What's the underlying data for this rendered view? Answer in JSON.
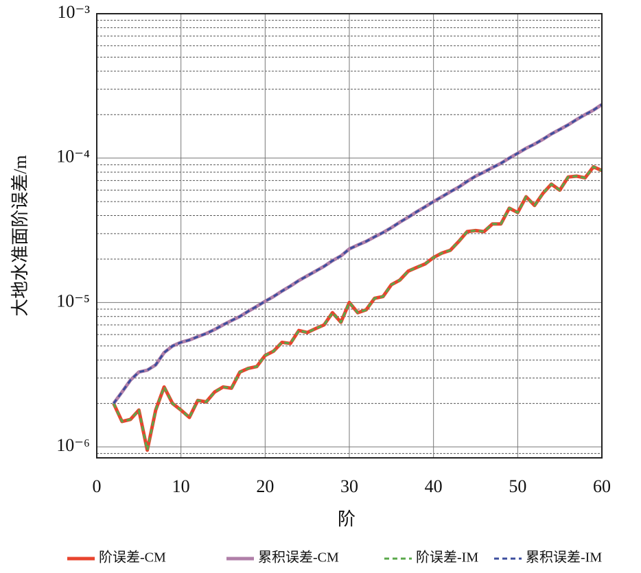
{
  "chart_data": {
    "type": "line",
    "x_label": "阶",
    "y_label": "大地水准面阶误差/m",
    "x": [
      2,
      3,
      4,
      5,
      6,
      7,
      8,
      9,
      10,
      11,
      12,
      13,
      14,
      15,
      16,
      17,
      18,
      19,
      20,
      21,
      22,
      23,
      24,
      25,
      26,
      27,
      28,
      29,
      30,
      31,
      32,
      33,
      34,
      35,
      36,
      37,
      38,
      39,
      40,
      41,
      42,
      43,
      44,
      45,
      46,
      47,
      48,
      49,
      50,
      51,
      52,
      53,
      54,
      55,
      56,
      57,
      58,
      59,
      60
    ],
    "series": [
      {
        "name": "阶误差-CM",
        "color": "#e8442e",
        "dash": false,
        "values": [
          2e-06,
          1.5e-06,
          1.55e-06,
          1.8e-06,
          9.5e-07,
          1.8e-06,
          2.6e-06,
          2e-06,
          1.8e-06,
          1.6e-06,
          2.1e-06,
          2.05e-06,
          2.4e-06,
          2.6e-06,
          2.55e-06,
          3.3e-06,
          3.5e-06,
          3.6e-06,
          4.3e-06,
          4.6e-06,
          5.3e-06,
          5.2e-06,
          6.4e-06,
          6.2e-06,
          6.6e-06,
          7e-06,
          8.5e-06,
          7.3e-06,
          1e-05,
          8.5e-06,
          8.9e-06,
          1.07e-05,
          1.1e-05,
          1.33e-05,
          1.43e-05,
          1.65e-05,
          1.75e-05,
          1.85e-05,
          2.05e-05,
          2.2e-05,
          2.3e-05,
          2.65e-05,
          3.1e-05,
          3.15e-05,
          3.1e-05,
          3.5e-05,
          3.5e-05,
          4.5e-05,
          4.2e-05,
          5.4e-05,
          4.7e-05,
          5.7e-05,
          6.6e-05,
          6e-05,
          7.4e-05,
          7.5e-05,
          7.3e-05,
          8.7e-05,
          8.2e-05
        ]
      },
      {
        "name": "累积误差-CM",
        "color": "#b07fa8",
        "dash": false,
        "values": [
          2e-06,
          2.4e-06,
          2.9e-06,
          3.3e-06,
          3.4e-06,
          3.7e-06,
          4.5e-06,
          5e-06,
          5.3e-06,
          5.5e-06,
          5.8e-06,
          6.1e-06,
          6.5e-06,
          7e-06,
          7.5e-06,
          8e-06,
          8.7e-06,
          9.4e-06,
          1.02e-05,
          1.1e-05,
          1.2e-05,
          1.3e-05,
          1.42e-05,
          1.53e-05,
          1.65e-05,
          1.78e-05,
          1.95e-05,
          2.1e-05,
          2.35e-05,
          2.5e-05,
          2.65e-05,
          2.85e-05,
          3.05e-05,
          3.3e-05,
          3.6e-05,
          3.9e-05,
          4.25e-05,
          4.6e-05,
          5e-05,
          5.4e-05,
          5.85e-05,
          6.3e-05,
          6.9e-05,
          7.5e-05,
          8e-05,
          8.6e-05,
          9.2e-05,
          0.0001,
          0.000108,
          0.000117,
          0.000125,
          0.000135,
          0.000147,
          0.000158,
          0.00017,
          0.000185,
          0.0002,
          0.000215,
          0.000235
        ]
      },
      {
        "name": "阶误差-IM",
        "color": "#5aa84a",
        "dash": true,
        "values": [
          2e-06,
          1.5e-06,
          1.55e-06,
          1.8e-06,
          9.5e-07,
          1.8e-06,
          2.6e-06,
          2e-06,
          1.8e-06,
          1.6e-06,
          2.1e-06,
          2.05e-06,
          2.4e-06,
          2.6e-06,
          2.55e-06,
          3.3e-06,
          3.5e-06,
          3.6e-06,
          4.3e-06,
          4.6e-06,
          5.3e-06,
          5.2e-06,
          6.4e-06,
          6.2e-06,
          6.6e-06,
          7e-06,
          8.5e-06,
          7.3e-06,
          1e-05,
          8.5e-06,
          8.9e-06,
          1.07e-05,
          1.1e-05,
          1.33e-05,
          1.43e-05,
          1.65e-05,
          1.75e-05,
          1.85e-05,
          2.05e-05,
          2.2e-05,
          2.3e-05,
          2.65e-05,
          3.1e-05,
          3.15e-05,
          3.1e-05,
          3.5e-05,
          3.5e-05,
          4.5e-05,
          4.2e-05,
          5.4e-05,
          4.7e-05,
          5.7e-05,
          6.6e-05,
          6e-05,
          7.4e-05,
          7.5e-05,
          7.3e-05,
          8.7e-05,
          8.2e-05
        ]
      },
      {
        "name": "累积误差-IM",
        "color": "#3c4e9e",
        "dash": true,
        "values": [
          2e-06,
          2.4e-06,
          2.9e-06,
          3.3e-06,
          3.4e-06,
          3.7e-06,
          4.5e-06,
          5e-06,
          5.3e-06,
          5.5e-06,
          5.8e-06,
          6.1e-06,
          6.5e-06,
          7e-06,
          7.5e-06,
          8e-06,
          8.7e-06,
          9.4e-06,
          1.02e-05,
          1.1e-05,
          1.2e-05,
          1.3e-05,
          1.42e-05,
          1.53e-05,
          1.65e-05,
          1.78e-05,
          1.95e-05,
          2.1e-05,
          2.35e-05,
          2.5e-05,
          2.65e-05,
          2.85e-05,
          3.05e-05,
          3.3e-05,
          3.6e-05,
          3.9e-05,
          4.25e-05,
          4.6e-05,
          5e-05,
          5.4e-05,
          5.85e-05,
          6.3e-05,
          6.9e-05,
          7.5e-05,
          8e-05,
          8.6e-05,
          9.2e-05,
          0.0001,
          0.000108,
          0.000117,
          0.000125,
          0.000135,
          0.000147,
          0.000158,
          0.00017,
          0.000185,
          0.0002,
          0.000215,
          0.000235
        ]
      }
    ],
    "xlim": [
      0,
      60
    ],
    "xticks": [
      0,
      10,
      20,
      30,
      40,
      50,
      60
    ],
    "ylim": [
      8.4e-07,
      0.001
    ],
    "ylog": true,
    "yticks": [
      {
        "value": 1e-06,
        "label": "10⁻⁶"
      },
      {
        "value": 1e-05,
        "label": "10⁻⁵"
      },
      {
        "value": 0.0001,
        "label": "10⁻⁴"
      },
      {
        "value": 0.001,
        "label": "10⁻³"
      }
    ],
    "grid": true,
    "legend": "bottom"
  }
}
